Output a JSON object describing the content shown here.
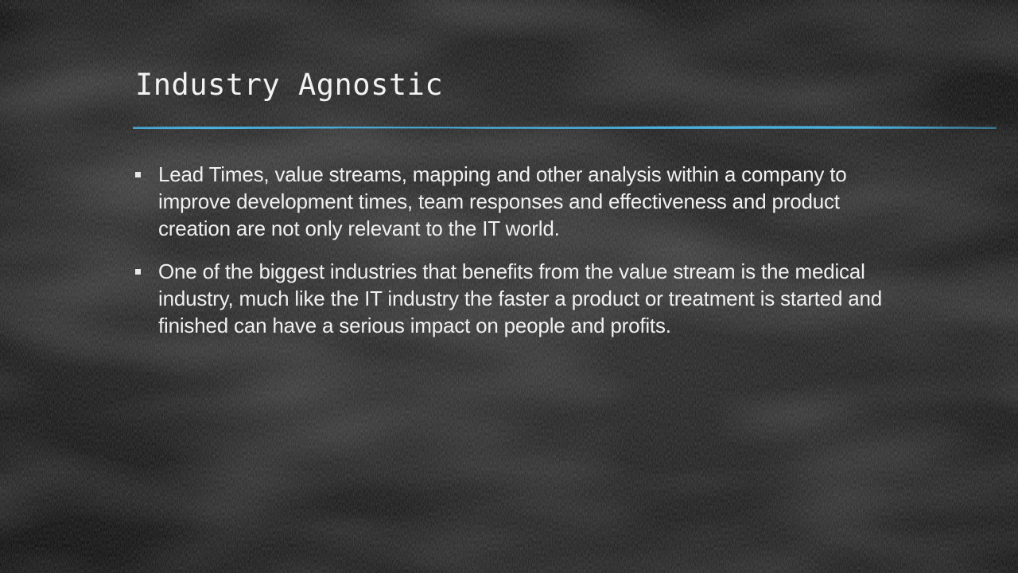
{
  "slide": {
    "title": "Industry Agnostic",
    "bullets": [
      {
        "text": "Lead Times, value streams, mapping and other analysis within a company to improve development times, team responses and effectiveness and product creation are not only relevant to the IT world."
      },
      {
        "text": "One of the biggest industries that benefits from the value stream is the medical industry, much like the IT industry the faster a product or treatment is started and finished can have a serious impact on people and profits."
      }
    ]
  },
  "colors": {
    "background": "#1c1c1c",
    "text": "#f0f0f0",
    "accent_rule": "#4ab0de"
  }
}
